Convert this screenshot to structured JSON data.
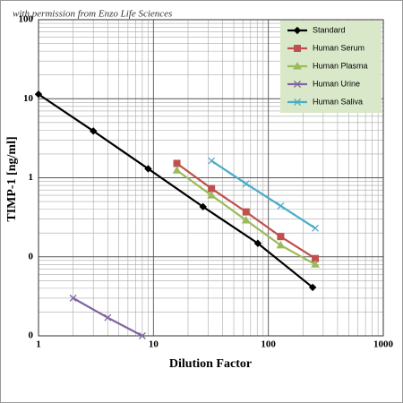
{
  "chart_data": {
    "type": "line",
    "annotation": "with permission from Enzo Life Sciences",
    "x_label": "Dilution Factor",
    "y_label": "TIMP-1 [ng/ml]",
    "log_x": true,
    "log_y": true,
    "grid": true,
    "legend": "upper right",
    "xlim": [
      1,
      1000
    ],
    "xticks": [
      1,
      10,
      100,
      1000
    ],
    "ylim": [
      0.01,
      100
    ],
    "yticks": [
      {
        "value": 0.01,
        "label": "0"
      },
      {
        "value": 0.1,
        "label": "0"
      },
      1,
      10,
      100
    ],
    "series": [
      {
        "name": "Standard",
        "color": "#000000",
        "marker": "diamond",
        "x": [
          1,
          3,
          9,
          27,
          81,
          243
        ],
        "values": [
          11.4,
          3.9,
          1.3,
          0.43,
          0.148,
          0.041
        ]
      },
      {
        "name": "Human Serum",
        "color": "#c0504d",
        "marker": "square",
        "x": [
          16,
          32,
          64,
          128,
          256
        ],
        "values": [
          1.52,
          0.73,
          0.37,
          0.18,
          0.095
        ]
      },
      {
        "name": "Human Plasma",
        "color": "#9bbb59",
        "marker": "triangle",
        "x": [
          16,
          32,
          64,
          128,
          256
        ],
        "values": [
          1.24,
          0.6,
          0.29,
          0.14,
          0.08
        ]
      },
      {
        "name": "Human Urine",
        "color": "#8064a2",
        "marker": "x",
        "x": [
          2,
          4,
          8
        ],
        "values": [
          0.03,
          0.017,
          0.01
        ]
      },
      {
        "name": "Human Saliva",
        "color": "#4bacc6",
        "marker": "x",
        "x": [
          32,
          64,
          128,
          256
        ],
        "values": [
          1.64,
          0.84,
          0.44,
          0.23
        ]
      }
    ]
  }
}
